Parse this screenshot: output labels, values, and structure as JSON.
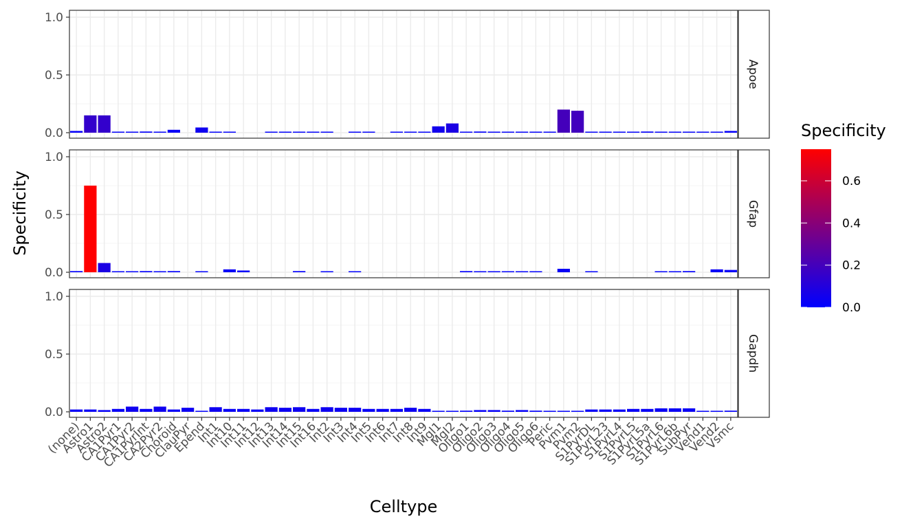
{
  "chart_data": {
    "type": "bar",
    "layout": "faceted-rows",
    "x_label": "Celltype",
    "y_label": "Specificity",
    "ylim": [
      0,
      1.0
    ],
    "y_ticks": [
      0.0,
      0.5,
      1.0
    ],
    "y_tick_labels": [
      "0.0",
      "0.5",
      "1.0"
    ],
    "grid": true,
    "categories": [
      "(none)",
      "Astro1",
      "Astro2",
      "CA1Pyr1",
      "CA1Pyr2",
      "CA1PyrInt",
      "CA2Pyr2",
      "Choroid",
      "ClauPyr",
      "Epend",
      "Int1",
      "Int10",
      "Int11",
      "Int12",
      "Int13",
      "Int14",
      "Int15",
      "Int16",
      "Int2",
      "Int3",
      "Int4",
      "Int5",
      "Int6",
      "Int7",
      "Int8",
      "Int9",
      "Mgl1",
      "Mgl2",
      "Oligo1",
      "Oligo2",
      "Oligo3",
      "Oligo4",
      "Oligo5",
      "Oligo6",
      "Peric",
      "Pvm1",
      "Pvm2",
      "S1PyrDL",
      "S1PyrL23",
      "S1PyrL4",
      "S1PyrL5",
      "S1PyrL5a",
      "S1PyrL6",
      "S1PyrL6b",
      "SubPyr",
      "Vend1",
      "Vend2",
      "Vsmc"
    ],
    "series": [
      {
        "name": "Apoe",
        "values": [
          0.015,
          0.15,
          0.15,
          0.005,
          0.005,
          0.01,
          0.005,
          0.025,
          null,
          0.045,
          0.003,
          0.005,
          null,
          null,
          0.002,
          0.002,
          0.002,
          0.005,
          0.002,
          null,
          0.005,
          0.005,
          null,
          0.002,
          0.002,
          0.002,
          0.055,
          0.08,
          0.005,
          0.01,
          0.005,
          0.005,
          0.005,
          0.005,
          0.005,
          0.2,
          0.19,
          0.005,
          0.002,
          0.002,
          0.002,
          0.01,
          0.005,
          0.005,
          0.005,
          0.005,
          0.005,
          0.015
        ]
      },
      {
        "name": "Gfap",
        "values": [
          0.01,
          0.75,
          0.08,
          0.005,
          0.005,
          0.01,
          0.005,
          0.01,
          null,
          0.003,
          null,
          0.025,
          0.015,
          null,
          null,
          null,
          0.01,
          null,
          0.003,
          null,
          0.003,
          null,
          null,
          null,
          null,
          null,
          null,
          null,
          0.01,
          0.005,
          0.005,
          0.005,
          0.005,
          0.005,
          null,
          0.03,
          null,
          0.003,
          null,
          null,
          null,
          null,
          0.003,
          0.003,
          0.01,
          null,
          0.025,
          0.02
        ]
      },
      {
        "name": "Gapdh",
        "values": [
          0.02,
          0.02,
          0.015,
          0.025,
          0.045,
          0.025,
          0.045,
          0.02,
          0.035,
          0.005,
          0.04,
          0.025,
          0.025,
          0.02,
          0.04,
          0.035,
          0.04,
          0.025,
          0.04,
          0.035,
          0.035,
          0.025,
          0.025,
          0.025,
          0.035,
          0.025,
          0.005,
          0.002,
          0.01,
          0.015,
          0.015,
          0.01,
          0.015,
          0.01,
          0.005,
          0.005,
          0.005,
          0.02,
          0.02,
          0.02,
          0.025,
          0.025,
          0.03,
          0.03,
          0.03,
          0.005,
          0.005,
          0.01
        ]
      }
    ],
    "legend": {
      "title": "Specificity",
      "position": "right",
      "range": [
        0,
        0.75
      ],
      "ticks": [
        0.0,
        0.2,
        0.4,
        0.6
      ],
      "tick_labels": [
        "0.0",
        "0.2",
        "0.4",
        "0.6"
      ],
      "low_color": "#0000ff",
      "high_color": "#ff0000"
    },
    "colors": {
      "panel_border": "#333333",
      "grid_major": "#ebebeb",
      "grid_minor": "#f5f5f5",
      "strip_fill": "#ffffff"
    }
  }
}
